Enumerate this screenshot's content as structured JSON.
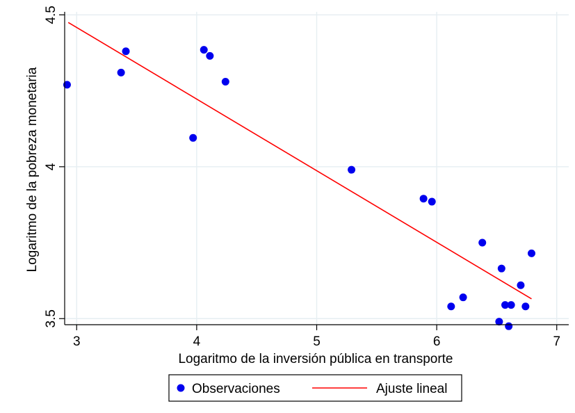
{
  "chart_data": {
    "type": "scatter",
    "xlabel": "Logaritmo de la inversión pública en transporte",
    "ylabel": "Logaritmo de la pobreza monetaria",
    "xlim": [
      2.9,
      7.1
    ],
    "ylim": [
      3.48,
      4.51
    ],
    "xticks": [
      3,
      4,
      5,
      6,
      7
    ],
    "xtick_labels": [
      "3",
      "4",
      "5",
      "6",
      "7"
    ],
    "yticks": [
      3.5,
      4,
      4.5
    ],
    "ytick_labels": [
      "3.5",
      "4",
      "4.5"
    ],
    "grid": true,
    "legend_position": "bottom",
    "series": [
      {
        "name": "Observaciones",
        "kind": "scatter",
        "color": "#0000ee",
        "points": [
          {
            "x": 2.92,
            "y": 4.27
          },
          {
            "x": 3.37,
            "y": 4.31
          },
          {
            "x": 3.41,
            "y": 4.38
          },
          {
            "x": 3.97,
            "y": 4.095
          },
          {
            "x": 4.06,
            "y": 4.385
          },
          {
            "x": 4.11,
            "y": 4.365
          },
          {
            "x": 4.24,
            "y": 4.28
          },
          {
            "x": 5.29,
            "y": 3.99
          },
          {
            "x": 5.89,
            "y": 3.895
          },
          {
            "x": 5.96,
            "y": 3.885
          },
          {
            "x": 6.12,
            "y": 3.54
          },
          {
            "x": 6.22,
            "y": 3.57
          },
          {
            "x": 6.38,
            "y": 3.75
          },
          {
            "x": 6.52,
            "y": 3.49
          },
          {
            "x": 6.54,
            "y": 3.665
          },
          {
            "x": 6.57,
            "y": 3.545
          },
          {
            "x": 6.6,
            "y": 3.475
          },
          {
            "x": 6.62,
            "y": 3.545
          },
          {
            "x": 6.7,
            "y": 3.61
          },
          {
            "x": 6.74,
            "y": 3.54
          },
          {
            "x": 6.79,
            "y": 3.715
          }
        ]
      },
      {
        "name": "Ajuste lineal",
        "kind": "line",
        "color": "#ff0000",
        "points": [
          {
            "x": 2.93,
            "y": 4.475
          },
          {
            "x": 6.79,
            "y": 3.565
          }
        ]
      }
    ]
  }
}
